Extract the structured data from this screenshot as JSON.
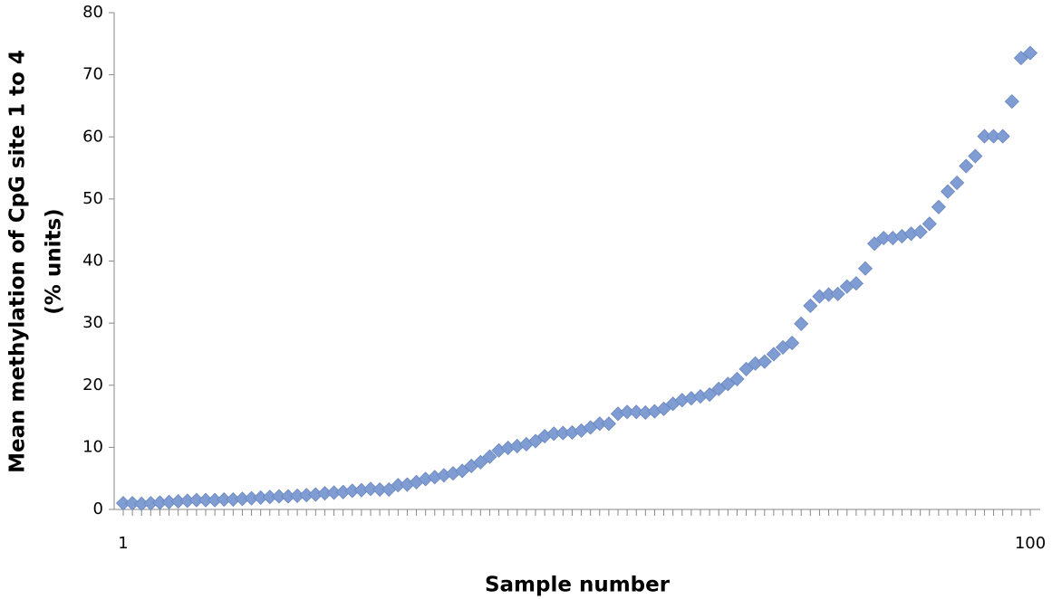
{
  "chart_data": {
    "type": "scatter",
    "x": [
      1,
      2,
      3,
      4,
      5,
      6,
      7,
      8,
      9,
      10,
      11,
      12,
      13,
      14,
      15,
      16,
      17,
      18,
      19,
      20,
      21,
      22,
      23,
      24,
      25,
      26,
      27,
      28,
      29,
      30,
      31,
      32,
      33,
      34,
      35,
      36,
      37,
      38,
      39,
      40,
      41,
      42,
      43,
      44,
      45,
      46,
      47,
      48,
      49,
      50,
      51,
      52,
      53,
      54,
      55,
      56,
      57,
      58,
      59,
      60,
      61,
      62,
      63,
      64,
      65,
      66,
      67,
      68,
      69,
      70,
      71,
      72,
      73,
      74,
      75,
      76,
      77,
      78,
      79,
      80,
      81,
      82,
      83,
      84,
      85,
      86,
      87,
      88,
      89,
      90,
      91,
      92,
      93,
      94,
      95,
      96,
      97,
      98,
      99,
      100
    ],
    "series": [
      {
        "color": "#7f9cd3",
        "values": [
          1.0,
          1.0,
          0.9,
          1.0,
          1.1,
          1.2,
          1.3,
          1.4,
          1.5,
          1.5,
          1.5,
          1.6,
          1.6,
          1.7,
          1.8,
          1.9,
          2.0,
          2.1,
          2.1,
          2.2,
          2.3,
          2.4,
          2.6,
          2.7,
          2.8,
          3.0,
          3.1,
          3.3,
          3.2,
          3.2,
          3.9,
          4.0,
          4.4,
          4.9,
          5.2,
          5.5,
          5.8,
          6.2,
          7.0,
          7.6,
          8.5,
          9.5,
          9.9,
          10.2,
          10.5,
          11.0,
          11.8,
          12.2,
          12.3,
          12.4,
          12.7,
          13.2,
          13.8,
          13.8,
          15.4,
          15.7,
          15.7,
          15.6,
          15.8,
          16.2,
          17.0,
          17.6,
          17.9,
          18.2,
          18.5,
          19.4,
          20.2,
          21.0,
          22.6,
          23.5,
          23.8,
          25.0,
          26.1,
          26.8,
          29.9,
          32.8,
          34.3,
          34.6,
          34.7,
          35.9,
          36.4,
          38.8,
          42.8,
          43.7,
          43.7,
          44.0,
          44.4,
          44.7,
          46.0,
          48.7,
          51.2,
          52.6,
          55.3,
          56.9,
          60.1,
          60.1,
          60.1,
          65.7,
          72.7,
          73.5
        ]
      }
    ],
    "xlim": [
      1,
      100
    ],
    "xticks": [
      1,
      100
    ],
    "ylim": [
      0,
      80
    ],
    "yticks": [
      0,
      10,
      20,
      30,
      40,
      50,
      60,
      70,
      80
    ],
    "xlabel": "Sample number",
    "ylabel": [
      "Mean methylation of CpG site 1 to 4",
      "(% units)"
    ]
  }
}
